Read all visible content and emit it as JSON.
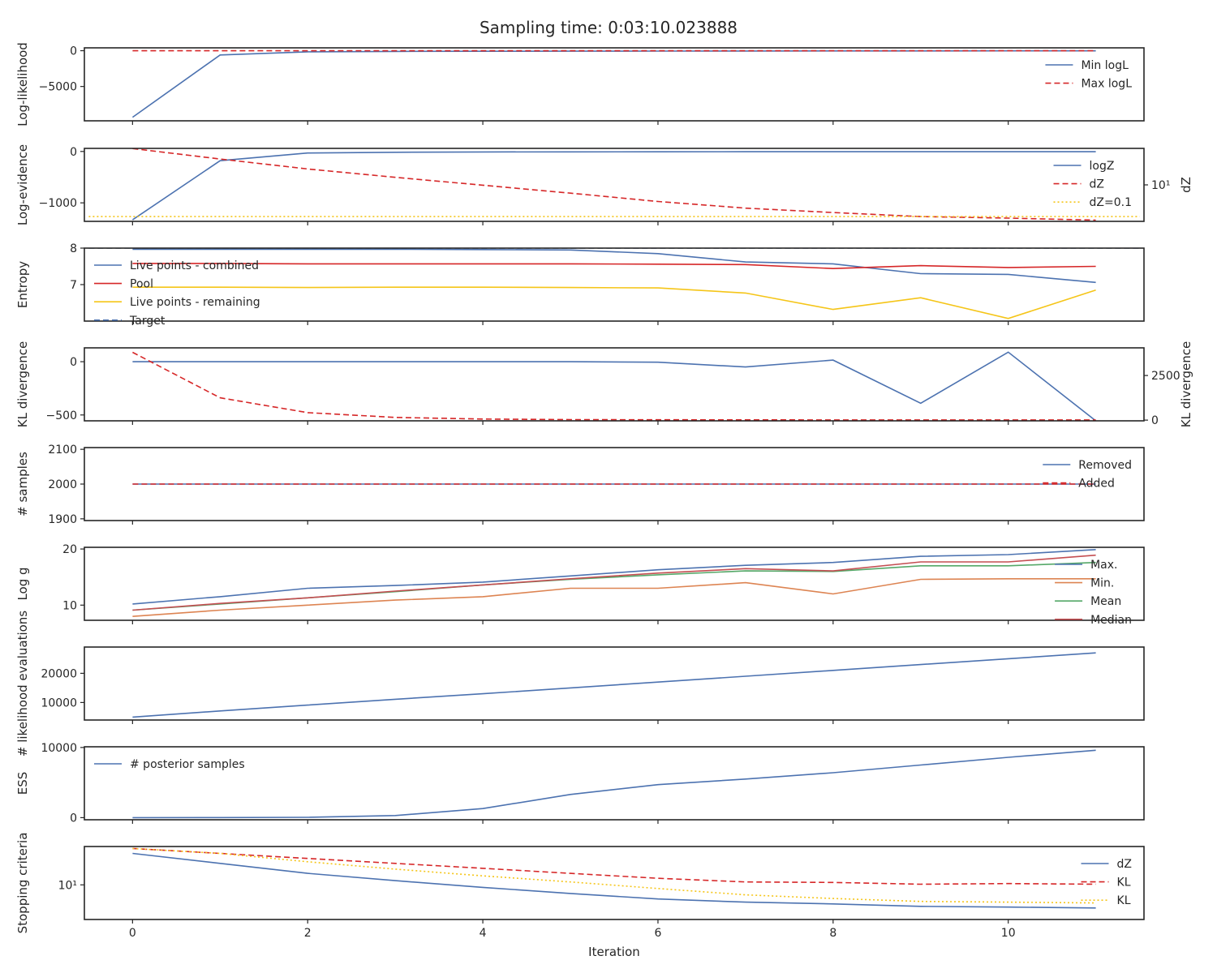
{
  "title": "Sampling time: 0:03:10.023888",
  "colors": {
    "blue": "#4c72b0",
    "red": "#d62728",
    "gold": "#f5c518",
    "orange": "#dd8452",
    "green": "#55a868",
    "brick": "#c44e52"
  },
  "chart_data": [
    {
      "type": "line",
      "ylabel": "Log-likelihood",
      "ylim": [
        -9800,
        400
      ],
      "yticks": [
        0,
        -5000
      ],
      "ytick_labels": [
        "0",
        "−5000"
      ],
      "legend": "top-right",
      "series": [
        {
          "name": "Min logL",
          "color": "#4c72b0",
          "dash": "solid",
          "x": [
            0,
            1,
            2,
            3,
            4,
            5,
            6,
            7,
            8,
            9,
            10,
            11
          ],
          "values": [
            -9300,
            -600,
            -150,
            -100,
            -80,
            -60,
            -50,
            -40,
            -30,
            -25,
            -20,
            -15
          ]
        },
        {
          "name": "Max logL",
          "color": "#d62728",
          "dash": "dashed",
          "x": [
            0,
            1,
            2,
            3,
            4,
            5,
            6,
            7,
            8,
            9,
            10,
            11
          ],
          "values": [
            -5,
            -5,
            -5,
            -5,
            -5,
            -5,
            -5,
            -5,
            -5,
            -5,
            -5,
            -5
          ]
        }
      ]
    },
    {
      "type": "line",
      "ylabel": "Log-evidence",
      "ylim": [
        -1360,
        60
      ],
      "yticks": [
        0,
        -1000
      ],
      "ytick_labels": [
        "0",
        "−1000"
      ],
      "y2label": "dZ",
      "y2scale": "log",
      "y2lim": [
        0.05,
        2000
      ],
      "y2ticks": [
        10
      ],
      "y2tick_labels": [
        "10¹"
      ],
      "legend": "top-right",
      "series": [
        {
          "name": "logZ",
          "color": "#4c72b0",
          "dash": "solid",
          "axis": "left",
          "x": [
            0,
            1,
            2,
            3,
            4,
            5,
            6,
            7,
            8,
            9,
            10,
            11
          ],
          "values": [
            -1330,
            -180,
            -30,
            -15,
            -10,
            -8,
            -6,
            -5,
            -5,
            -5,
            -5,
            -5
          ]
        },
        {
          "name": "dZ",
          "color": "#d62728",
          "dash": "dashed",
          "axis": "right",
          "x": [
            0,
            1,
            2,
            3,
            4,
            5,
            6,
            7,
            8,
            9,
            10,
            11
          ],
          "values": [
            1950,
            430,
            100,
            30,
            9.5,
            3,
            0.9,
            0.34,
            0.18,
            0.1,
            0.08,
            0.06
          ]
        },
        {
          "name": "dZ=0.1",
          "color": "#f5c518",
          "dash": "dotted",
          "axis": "right",
          "x": [
            -0.5,
            11.5
          ],
          "values": [
            0.1,
            0.1
          ]
        }
      ]
    },
    {
      "type": "line",
      "ylabel": "Entropy",
      "ylim": [
        6.0,
        8.0
      ],
      "yticks": [
        8,
        7
      ],
      "ytick_labels": [
        "8",
        "7"
      ],
      "legend": "top-left",
      "series": [
        {
          "name": "Live points - combined",
          "color": "#4c72b0",
          "dash": "solid",
          "x": [
            0,
            1,
            2,
            3,
            4,
            5,
            6,
            7,
            8,
            9,
            10,
            11
          ],
          "values": [
            7.97,
            7.97,
            7.97,
            7.97,
            7.96,
            7.95,
            7.85,
            7.62,
            7.57,
            7.3,
            7.28,
            7.06
          ]
        },
        {
          "name": "Pool",
          "color": "#d62728",
          "dash": "solid",
          "x": [
            0,
            1,
            2,
            3,
            4,
            5,
            6,
            7,
            8,
            9,
            10,
            11
          ],
          "values": [
            7.58,
            7.58,
            7.57,
            7.57,
            7.57,
            7.57,
            7.56,
            7.55,
            7.44,
            7.52,
            7.47,
            7.5
          ]
        },
        {
          "name": "Live points - remaining",
          "color": "#f5c518",
          "dash": "solid",
          "x": [
            0,
            1,
            2,
            3,
            4,
            5,
            6,
            7,
            8,
            9,
            10,
            11
          ],
          "values": [
            6.93,
            6.93,
            6.92,
            6.93,
            6.93,
            6.92,
            6.91,
            6.77,
            6.32,
            6.64,
            6.07,
            6.85
          ]
        },
        {
          "name": "Target",
          "color": "#4c72b0",
          "dash": "dashed",
          "x": [
            -0.5,
            11.5
          ],
          "values": [
            8.0,
            8.0
          ]
        }
      ]
    },
    {
      "type": "line",
      "ylabel": "KL divergence",
      "ylim": [
        -555,
        130
      ],
      "yticks": [
        0,
        -500
      ],
      "ytick_labels": [
        "0",
        "−500"
      ],
      "y2label": "KL divergence",
      "y2lim": [
        -40,
        4050
      ],
      "y2ticks": [
        2500,
        0
      ],
      "y2tick_labels": [
        "2500",
        "0"
      ],
      "legend": "none",
      "series": [
        {
          "name": "",
          "color": "#4c72b0",
          "dash": "solid",
          "axis": "left",
          "x": [
            0,
            1,
            2,
            3,
            4,
            5,
            6,
            7,
            8,
            9,
            10,
            11
          ],
          "values": [
            0,
            0,
            0,
            0,
            0,
            0,
            -5,
            -50,
            15,
            -390,
            90,
            -555
          ]
        },
        {
          "name": "",
          "color": "#d62728",
          "dash": "dashed",
          "axis": "right",
          "x": [
            0,
            1,
            2,
            3,
            4,
            5,
            6,
            7,
            8,
            9,
            10,
            11
          ],
          "values": [
            3800,
            1250,
            420,
            150,
            60,
            30,
            20,
            15,
            10,
            10,
            10,
            10
          ]
        }
      ]
    },
    {
      "type": "line",
      "ylabel": "# samples",
      "ylim": [
        1895,
        2105
      ],
      "yticks": [
        2100,
        2000,
        1900
      ],
      "ytick_labels": [
        "2100",
        "2000",
        "1900"
      ],
      "legend": "top-right",
      "series": [
        {
          "name": "Removed",
          "color": "#4c72b0",
          "dash": "solid",
          "x": [
            0,
            1,
            2,
            3,
            4,
            5,
            6,
            7,
            8,
            9,
            10,
            11
          ],
          "values": [
            2000,
            2000,
            2000,
            2000,
            2000,
            2000,
            2000,
            2000,
            2000,
            2000,
            2000,
            2000
          ]
        },
        {
          "name": "Added",
          "color": "#d62728",
          "dash": "dashed",
          "x": [
            0,
            1,
            2,
            3,
            4,
            5,
            6,
            7,
            8,
            9,
            10,
            11
          ],
          "values": [
            2000,
            2000,
            2000,
            2000,
            2000,
            2000,
            2000,
            2000,
            2000,
            2000,
            2000,
            2000
          ]
        }
      ]
    },
    {
      "type": "line",
      "ylabel": "Log g",
      "ylim": [
        7.3,
        20.3
      ],
      "yticks": [
        20,
        10
      ],
      "ytick_labels": [
        "20",
        "10"
      ],
      "legend": "right",
      "series": [
        {
          "name": "Max.",
          "color": "#4c72b0",
          "dash": "solid",
          "x": [
            0,
            1,
            2,
            3,
            4,
            5,
            6,
            7,
            8,
            9,
            10,
            11
          ],
          "values": [
            10.2,
            11.5,
            13.0,
            13.5,
            14.1,
            15.2,
            16.3,
            17.1,
            17.6,
            18.7,
            19.0,
            19.9
          ]
        },
        {
          "name": "Min.",
          "color": "#dd8452",
          "dash": "solid",
          "x": [
            0,
            1,
            2,
            3,
            4,
            5,
            6,
            7,
            8,
            9,
            10,
            11
          ],
          "values": [
            8.0,
            9.1,
            10.0,
            10.9,
            11.5,
            13.0,
            13.0,
            14.0,
            12.0,
            14.6,
            14.7,
            14.7
          ]
        },
        {
          "name": "Mean",
          "color": "#55a868",
          "dash": "solid",
          "x": [
            0,
            1,
            2,
            3,
            4,
            5,
            6,
            7,
            8,
            9,
            10,
            11
          ],
          "values": [
            9.1,
            10.2,
            11.3,
            12.4,
            13.6,
            14.6,
            15.4,
            16.1,
            16.0,
            17.0,
            17.0,
            17.6
          ]
        },
        {
          "name": "Median",
          "color": "#c44e52",
          "dash": "solid",
          "x": [
            0,
            1,
            2,
            3,
            4,
            5,
            6,
            7,
            8,
            9,
            10,
            11
          ],
          "values": [
            9.1,
            10.3,
            11.3,
            12.5,
            13.6,
            14.7,
            15.7,
            16.5,
            16.1,
            17.7,
            17.7,
            18.9
          ]
        }
      ]
    },
    {
      "type": "line",
      "ylabel": "# likelihood evaluations",
      "ylim": [
        4000,
        29000
      ],
      "yticks": [
        20000,
        10000
      ],
      "ytick_labels": [
        "20000",
        "10000"
      ],
      "legend": "none",
      "series": [
        {
          "name": "",
          "color": "#4c72b0",
          "dash": "solid",
          "x": [
            0,
            1,
            2,
            3,
            4,
            5,
            6,
            7,
            8,
            9,
            10,
            11
          ],
          "values": [
            5000,
            7100,
            9100,
            11100,
            13000,
            15000,
            17000,
            19000,
            21000,
            23000,
            25000,
            27000
          ]
        }
      ]
    },
    {
      "type": "line",
      "ylabel": "ESS",
      "ylim": [
        -300,
        10100
      ],
      "yticks": [
        10000,
        0
      ],
      "ytick_labels": [
        "10000",
        "0"
      ],
      "legend": "top-left",
      "series": [
        {
          "name": "# posterior samples",
          "color": "#4c72b0",
          "dash": "solid",
          "x": [
            0,
            1,
            2,
            3,
            4,
            5,
            6,
            7,
            8,
            9,
            10,
            11
          ],
          "values": [
            0,
            10,
            50,
            300,
            1300,
            3300,
            4700,
            5500,
            6400,
            7500,
            8600,
            9600
          ]
        }
      ]
    },
    {
      "type": "line",
      "ylabel": "Stopping criteria",
      "yscale": "log",
      "ylim": [
        0.08,
        2100
      ],
      "yticks": [
        10
      ],
      "ytick_labels": [
        "10¹"
      ],
      "legend": "top-right",
      "xlabel": "Iteration",
      "xlim": [
        -0.55,
        11.55
      ],
      "xticks": [
        0,
        2,
        4,
        6,
        8,
        10
      ],
      "xtick_labels": [
        "0",
        "2",
        "4",
        "6",
        "8",
        "10"
      ],
      "series": [
        {
          "name": "dZ",
          "color": "#4c72b0",
          "dash": "solid",
          "x": [
            0,
            1,
            2,
            3,
            4,
            5,
            6,
            7,
            8,
            9,
            10,
            11
          ],
          "values": [
            800,
            200,
            50,
            18,
            7,
            3,
            1.4,
            0.9,
            0.7,
            0.5,
            0.45,
            0.4
          ]
        },
        {
          "name": "KL",
          "color": "#d62728",
          "dash": "dashed",
          "x": [
            0,
            1,
            2,
            3,
            4,
            5,
            6,
            7,
            8,
            9,
            10,
            11
          ],
          "values": [
            1600,
            800,
            400,
            200,
            100,
            50,
            25,
            15,
            14,
            11,
            12,
            11
          ]
        },
        {
          "name": "KL",
          "color": "#f5c518",
          "dash": "dotted",
          "x": [
            0,
            1,
            2,
            3,
            4,
            5,
            6,
            7,
            8,
            9,
            10,
            11
          ],
          "values": [
            1600,
            800,
            250,
            90,
            35,
            15,
            6,
            2.5,
            1.5,
            1.0,
            0.9,
            0.8
          ]
        }
      ]
    }
  ]
}
